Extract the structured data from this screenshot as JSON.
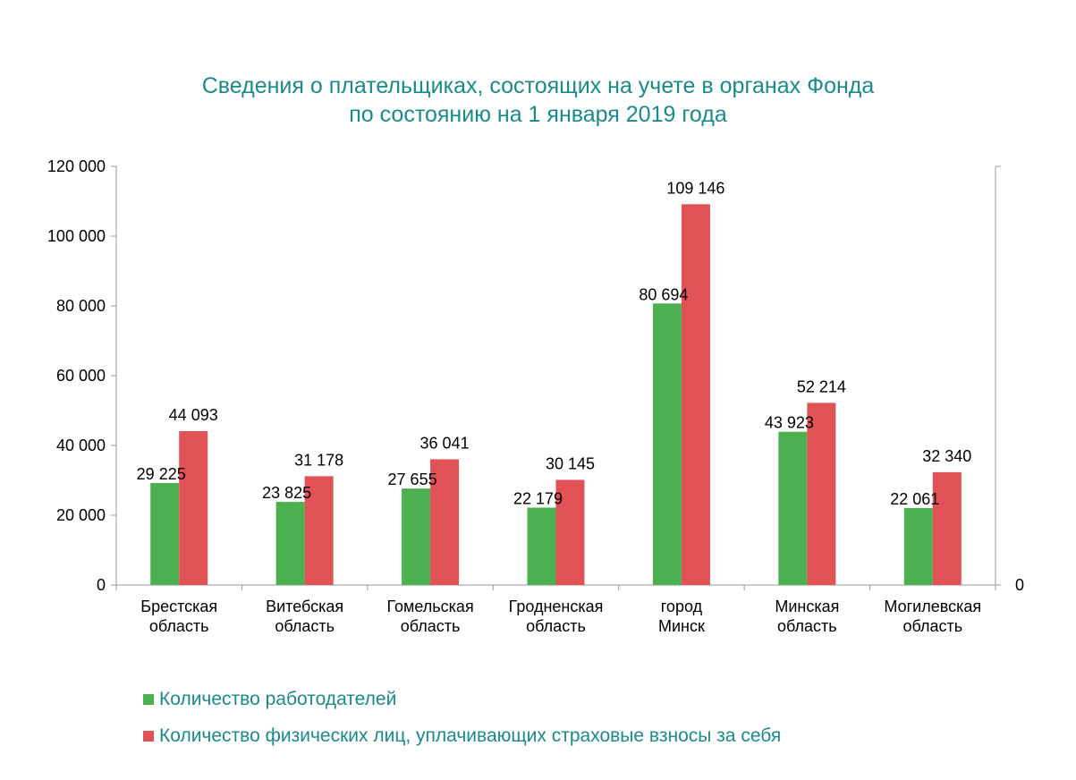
{
  "chart_data": {
    "type": "bar",
    "title_lines": [
      "Сведения о плательщиках, состоящих на учете в органах Фонда",
      "по состоянию на 1 января 2019 года"
    ],
    "categories": [
      [
        "Брестская",
        "область"
      ],
      [
        "Витебская",
        "область"
      ],
      [
        "Гомельская",
        "область"
      ],
      [
        "Гродненская",
        "область"
      ],
      [
        "город",
        "Минск"
      ],
      [
        "Минская",
        "область"
      ],
      [
        "Могилевская",
        "область"
      ]
    ],
    "series": [
      {
        "name": "Количество работодателей",
        "color": "#4caf50",
        "values": [
          29225,
          23825,
          27655,
          22179,
          80694,
          43923,
          22061
        ],
        "labels": [
          "29 225",
          "23 825",
          "27 655",
          "22 179",
          "80 694",
          "43 923",
          "22 061"
        ]
      },
      {
        "name": "Количество физических лиц, уплачивающих страховые взносы за себя",
        "color": "#e05256",
        "values": [
          44093,
          31178,
          36041,
          30145,
          109146,
          52214,
          32340
        ],
        "labels": [
          "44 093",
          "31 178",
          "36 041",
          "30 145",
          "109 146",
          "52 214",
          "32 340"
        ]
      }
    ],
    "ylim": [
      0,
      120000
    ],
    "yticks": [
      0,
      20000,
      40000,
      60000,
      80000,
      100000,
      120000
    ],
    "ytick_labels": [
      "0",
      "20 000",
      "40 000",
      "60 000",
      "80 000",
      "100 000",
      "120 000"
    ],
    "secondary_axis_label": "0",
    "legend_position": "bottom-left",
    "grid": false
  }
}
